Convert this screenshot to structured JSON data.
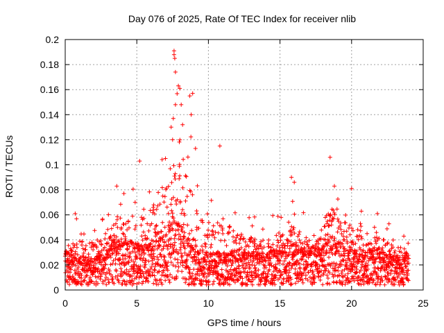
{
  "chart_data": {
    "type": "scatter",
    "title": "Day 076 of 2025, Rate Of TEC Index for receiver nlib",
    "xlabel": "GPS time / hours",
    "ylabel": "ROTI / TECUs",
    "xlim": [
      0,
      25
    ],
    "ylim": [
      0,
      0.2
    ],
    "x_ticks": [
      "0",
      "5",
      "10",
      "15",
      "20",
      "25"
    ],
    "y_ticks": [
      "0",
      "0.02",
      "0.04",
      "0.06",
      "0.08",
      "0.1",
      "0.12",
      "0.14",
      "0.16",
      "0.18",
      "0.2"
    ],
    "grid": true,
    "marker": "+",
    "color": "#ff0000",
    "series": [
      {
        "name": "ROTI",
        "envelope": {
          "hours": [
            0,
            1,
            2,
            3,
            3.5,
            4,
            5,
            6,
            7,
            7.5,
            8,
            8.5,
            9,
            10,
            11,
            12,
            13,
            14,
            15,
            15.5,
            16,
            17,
            18,
            18.5,
            19,
            20,
            21,
            21.5,
            22,
            23,
            24
          ],
          "median": [
            0.022,
            0.02,
            0.019,
            0.024,
            0.032,
            0.03,
            0.028,
            0.032,
            0.038,
            0.042,
            0.04,
            0.033,
            0.024,
            0.022,
            0.022,
            0.024,
            0.024,
            0.022,
            0.026,
            0.03,
            0.028,
            0.025,
            0.026,
            0.032,
            0.03,
            0.024,
            0.022,
            0.026,
            0.024,
            0.02,
            0.02
          ],
          "peak": [
            0.045,
            0.06,
            0.055,
            0.06,
            0.083,
            0.075,
            0.1,
            0.1,
            0.12,
            0.19,
            0.16,
            0.157,
            0.12,
            0.065,
            0.115,
            0.065,
            0.06,
            0.055,
            0.065,
            0.09,
            0.075,
            0.055,
            0.06,
            0.106,
            0.085,
            0.08,
            0.055,
            0.061,
            0.06,
            0.05,
            0.045
          ]
        },
        "outliers": [
          [
            7.6,
            0.191
          ],
          [
            7.6,
            0.188
          ],
          [
            7.65,
            0.185
          ],
          [
            7.7,
            0.174
          ],
          [
            7.9,
            0.163
          ],
          [
            8.0,
            0.161
          ],
          [
            8.9,
            0.157
          ],
          [
            8.7,
            0.155
          ],
          [
            7.7,
            0.148
          ],
          [
            8.1,
            0.148
          ],
          [
            8.8,
            0.14
          ],
          [
            8.2,
            0.132
          ],
          [
            7.4,
            0.13
          ],
          [
            7.55,
            0.137
          ],
          [
            7.5,
            0.12
          ],
          [
            9.1,
            0.113
          ],
          [
            7.0,
            0.105
          ],
          [
            5.2,
            0.103
          ],
          [
            10.8,
            0.115
          ],
          [
            18.5,
            0.106
          ],
          [
            15.8,
            0.09
          ],
          [
            16.0,
            0.086
          ],
          [
            18.8,
            0.083
          ],
          [
            20.0,
            0.081
          ],
          [
            3.6,
            0.083
          ],
          [
            4.1,
            0.077
          ],
          [
            21.8,
            0.061
          ],
          [
            0.7,
            0.061
          ]
        ]
      }
    ]
  }
}
